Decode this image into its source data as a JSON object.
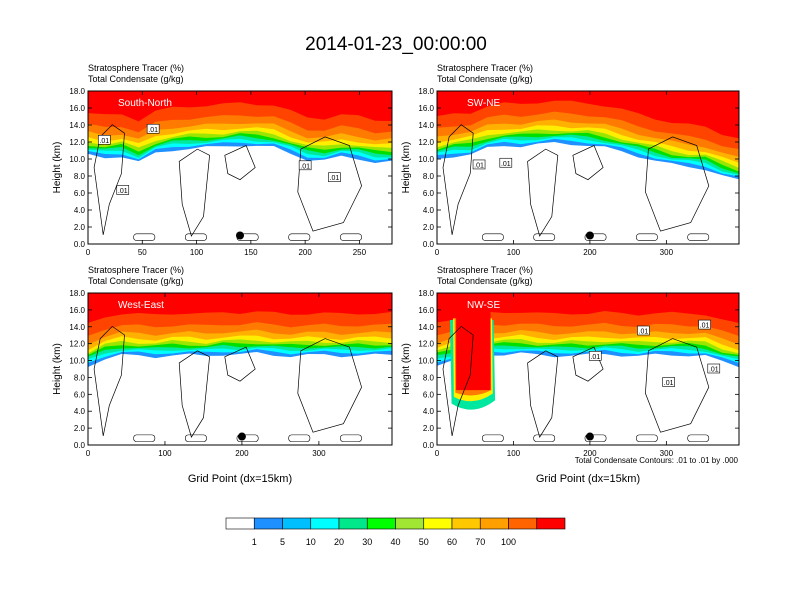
{
  "figure": {
    "title": "2014-01-23_00:00:00",
    "contour_note": "Total Condensate Contours: .01 to .01 by .000"
  },
  "colorbar": {
    "labels": [
      "1",
      "5",
      "10",
      "20",
      "30",
      "40",
      "50",
      "60",
      "70",
      "100"
    ],
    "colors": [
      "#ffffff",
      "#1e90ff",
      "#00bfff",
      "#00ffff",
      "#00e88a",
      "#00ff00",
      "#a0e632",
      "#ffff00",
      "#ffc800",
      "#ffa000",
      "#ff6400",
      "#ff0000"
    ]
  },
  "chart_data": [
    {
      "type": "heatmap",
      "panel_label": "South-North",
      "subtitle_1": "Stratosphere Tracer   (%)",
      "subtitle_2": "Total Condensate   (g/kg)",
      "ylabel": "Height (km)",
      "xlabel": "",
      "xlim": [
        0,
        280
      ],
      "ylim": [
        0,
        18
      ],
      "xticks": [
        "0",
        "50",
        "100",
        "150",
        "200",
        "250"
      ],
      "yticks": [
        "0.0",
        "2.0",
        "4.0",
        "6.0",
        "8.0",
        "10.0",
        "12.0",
        "14.0",
        "16.0",
        "18.0"
      ],
      "tropopause_km": [
        15.4,
        15.1,
        15.3,
        14.6,
        15.6,
        16.0,
        16.2,
        16.3,
        16.4,
        16.6,
        16.5,
        16.3,
        15.6,
        14.9,
        14.8,
        15.2,
        15.0,
        14.6,
        14.6
      ],
      "marker": {
        "x": 140,
        "y": 1.0
      },
      "contour_labels": [
        {
          "text": ".01",
          "x": 15,
          "y": 12.2
        },
        {
          "text": ".01",
          "x": 60,
          "y": 13.5
        },
        {
          "text": ".01",
          "x": 32,
          "y": 6.3
        },
        {
          "text": ".01",
          "x": 200,
          "y": 9.2
        },
        {
          "text": ".01",
          "x": 227,
          "y": 7.8
        }
      ]
    },
    {
      "type": "heatmap",
      "panel_label": "SW-NE",
      "subtitle_1": "Stratosphere Tracer   (%)",
      "subtitle_2": "Total Condensate   (g/kg)",
      "ylabel": "Height (km)",
      "xlabel": "",
      "xlim": [
        0,
        395
      ],
      "ylim": [
        0,
        18
      ],
      "xticks": [
        "0",
        "100",
        "200",
        "300"
      ],
      "yticks": [
        "0.0",
        "2.0",
        "4.0",
        "6.0",
        "8.0",
        "10.0",
        "12.0",
        "14.0",
        "16.0",
        "18.0"
      ],
      "tropopause_km": [
        14.9,
        15.3,
        15.5,
        16.2,
        16.5,
        16.5,
        16.7,
        16.8,
        16.7,
        16.6,
        16.3,
        15.8,
        15.3,
        14.8,
        14.3,
        14.0,
        13.8,
        13.0,
        12.4
      ],
      "marker": {
        "x": 200,
        "y": 1.0
      },
      "contour_labels": [
        {
          "text": ".01",
          "x": 55,
          "y": 9.3
        },
        {
          "text": ".01",
          "x": 90,
          "y": 9.5
        }
      ]
    },
    {
      "type": "heatmap",
      "panel_label": "West-East",
      "subtitle_1": "Stratosphere Tracer   (%)",
      "subtitle_2": "Total Condensate   (g/kg)",
      "ylabel": "Height (km)",
      "xlabel": "Grid Point (dx=15km)",
      "xlim": [
        0,
        395
      ],
      "ylim": [
        0,
        18
      ],
      "xticks": [
        "0",
        "100",
        "200",
        "300"
      ],
      "yticks": [
        "0.0",
        "2.0",
        "4.0",
        "6.0",
        "8.0",
        "10.0",
        "12.0",
        "14.0",
        "16.0",
        "18.0"
      ],
      "tropopause_km": [
        14.3,
        15.2,
        15.6,
        15.5,
        15.4,
        15.6,
        15.6,
        15.5,
        15.7,
        15.7,
        15.8,
        15.6,
        15.5,
        15.6,
        15.6,
        15.5,
        15.6,
        15.6,
        15.6
      ],
      "marker": {
        "x": 200,
        "y": 1.0
      },
      "contour_labels": []
    },
    {
      "type": "heatmap",
      "panel_label": "NW-SE",
      "subtitle_1": "Stratosphere Tracer   (%)",
      "subtitle_2": "Total Condensate   (g/kg)",
      "ylabel": "Height (km)",
      "xlabel": "Grid Point (dx=15km)",
      "xlim": [
        0,
        395
      ],
      "ylim": [
        0,
        18
      ],
      "xticks": [
        "0",
        "100",
        "200",
        "300"
      ],
      "yticks": [
        "0.0",
        "2.0",
        "4.0",
        "6.0",
        "8.0",
        "10.0",
        "12.0",
        "14.0",
        "16.0",
        "18.0"
      ],
      "tropopause_km": [
        14.5,
        15.0,
        15.4,
        15.6,
        15.7,
        15.8,
        15.6,
        15.5,
        15.6,
        15.6,
        15.7,
        15.6,
        15.5,
        15.6,
        15.6,
        15.6,
        15.5,
        14.8,
        14.3
      ],
      "intrusion": {
        "x_from": 25,
        "x_to": 70,
        "bottom_km": 6.5
      },
      "marker": {
        "x": 200,
        "y": 1.0
      },
      "contour_labels": [
        {
          "text": ".01",
          "x": 270,
          "y": 13.5
        },
        {
          "text": ".01",
          "x": 350,
          "y": 14.2
        },
        {
          "text": ".01",
          "x": 207,
          "y": 10.5
        },
        {
          "text": ".01",
          "x": 303,
          "y": 7.4
        },
        {
          "text": ".01",
          "x": 362,
          "y": 9.0
        }
      ]
    }
  ]
}
